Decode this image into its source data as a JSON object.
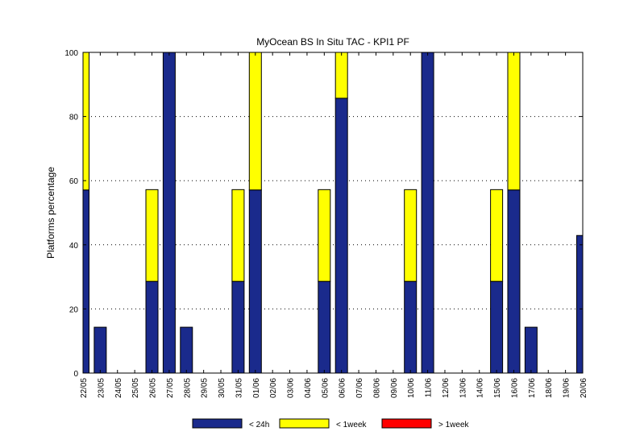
{
  "chart_data": {
    "type": "bar",
    "stacked": true,
    "title": "MyOcean  BS In Situ TAC - KPI1  PF",
    "xlabel": "",
    "ylabel": "Platforms percentage",
    "ylim": [
      0,
      100
    ],
    "yticks": [
      0,
      20,
      40,
      60,
      80,
      100
    ],
    "grid": "horizontal-dotted",
    "categories": [
      "22/05",
      "23/05",
      "24/05",
      "25/05",
      "26/05",
      "27/05",
      "28/05",
      "29/05",
      "30/05",
      "31/05",
      "01/06",
      "02/06",
      "03/06",
      "04/06",
      "05/06",
      "06/06",
      "07/06",
      "08/06",
      "09/06",
      "10/06",
      "11/06",
      "12/06",
      "13/06",
      "14/06",
      "15/06",
      "16/06",
      "17/06",
      "18/06",
      "19/06",
      "20/06"
    ],
    "series": [
      {
        "name": "< 24h",
        "color": "#1a2a8c",
        "values": [
          57.1,
          14.3,
          0,
          0,
          28.6,
          100,
          14.3,
          0,
          0,
          28.6,
          57.1,
          0,
          0,
          0,
          28.6,
          85.7,
          0,
          0,
          0,
          28.6,
          100,
          0,
          0,
          0,
          28.6,
          57.1,
          14.3,
          0,
          0,
          42.9
        ]
      },
      {
        "name": "< 1week",
        "color": "#ffff00",
        "values": [
          42.9,
          0,
          0,
          0,
          28.6,
          0,
          0,
          0,
          0,
          28.6,
          42.9,
          0,
          0,
          0,
          28.6,
          14.3,
          0,
          0,
          0,
          28.6,
          0,
          0,
          0,
          0,
          28.6,
          42.9,
          0,
          0,
          0,
          0
        ]
      },
      {
        "name": "> 1week",
        "color": "#ff0000",
        "values": [
          0,
          0,
          0,
          0,
          0,
          0,
          0,
          0,
          0,
          0,
          0,
          0,
          0,
          0,
          0,
          0,
          0,
          0,
          0,
          0,
          0,
          0,
          0,
          0,
          0,
          0,
          0,
          0,
          0,
          0
        ]
      }
    ],
    "legend_position": "bottom"
  }
}
